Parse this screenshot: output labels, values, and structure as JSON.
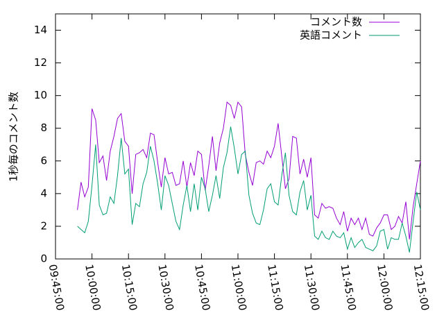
{
  "chart_data": {
    "type": "line",
    "y_label": "1秒毎のコメント数",
    "x": [
      "09:54:00",
      "09:55:30",
      "09:57:00",
      "09:58:30",
      "10:00:00",
      "10:01:30",
      "10:03:00",
      "10:04:30",
      "10:06:00",
      "10:07:30",
      "10:09:00",
      "10:10:30",
      "10:12:00",
      "10:13:30",
      "10:15:00",
      "10:16:30",
      "10:18:00",
      "10:19:30",
      "10:21:00",
      "10:22:30",
      "10:24:00",
      "10:25:30",
      "10:27:00",
      "10:28:30",
      "10:30:00",
      "10:31:30",
      "10:33:00",
      "10:34:30",
      "10:36:00",
      "10:37:30",
      "10:39:00",
      "10:40:30",
      "10:42:00",
      "10:43:30",
      "10:45:00",
      "10:46:30",
      "10:48:00",
      "10:49:30",
      "10:51:00",
      "10:52:30",
      "10:54:00",
      "10:55:30",
      "10:57:00",
      "10:58:30",
      "11:00:00",
      "11:01:30",
      "11:03:00",
      "11:04:30",
      "11:06:00",
      "11:07:30",
      "11:09:00",
      "11:10:30",
      "11:12:00",
      "11:13:30",
      "11:15:00",
      "11:16:30",
      "11:18:00",
      "11:19:30",
      "11:21:00",
      "11:22:30",
      "11:24:00",
      "11:25:30",
      "11:27:00",
      "11:28:30",
      "11:30:00",
      "11:31:30",
      "11:33:00",
      "11:34:30",
      "11:36:00",
      "11:37:30",
      "11:39:00",
      "11:40:30",
      "11:42:00",
      "11:43:30",
      "11:45:00",
      "11:46:30",
      "11:48:00",
      "11:49:30",
      "11:51:00",
      "11:52:30",
      "11:54:00",
      "11:55:30",
      "11:57:00",
      "11:58:30",
      "12:00:00",
      "12:01:30",
      "12:03:00",
      "12:04:30",
      "12:06:00",
      "12:07:30",
      "12:09:00",
      "12:10:30",
      "12:12:00",
      "12:13:30",
      "12:15:00"
    ],
    "series": [
      {
        "name": "コメント数",
        "color": "#9400d3",
        "values": [
          3.0,
          4.7,
          3.8,
          4.4,
          9.2,
          8.5,
          5.9,
          6.3,
          4.8,
          6.6,
          7.5,
          8.6,
          8.9,
          7.2,
          6.9,
          4.0,
          6.4,
          6.5,
          6.7,
          6.2,
          7.7,
          7.6,
          5.9,
          4.4,
          6.2,
          5.2,
          5.3,
          4.5,
          4.6,
          6.0,
          4.4,
          5.9,
          5.1,
          6.6,
          6.4,
          4.2,
          5.7,
          7.5,
          5.4,
          7.1,
          8.0,
          9.6,
          9.4,
          8.6,
          9.6,
          9.3,
          6.4,
          5.3,
          4.5,
          5.9,
          6.0,
          5.8,
          6.6,
          6.2,
          6.9,
          8.3,
          6.3,
          4.3,
          4.9,
          7.5,
          7.4,
          5.2,
          6.1,
          5.0,
          6.2,
          2.7,
          2.5,
          3.4,
          3.1,
          3.2,
          3.1,
          2.5,
          2.1,
          2.9,
          1.7,
          2.5,
          2.1,
          2.5,
          1.8,
          2.5,
          1.5,
          1.4,
          1.9,
          2.2,
          2.7,
          2.7,
          1.8,
          2.0,
          2.6,
          2.2,
          3.5,
          1.2,
          3.2,
          4.6,
          6.0
        ]
      },
      {
        "name": "英語コメント",
        "color": "#009e73",
        "values": [
          2.0,
          1.8,
          1.6,
          2.3,
          4.5,
          7.0,
          3.3,
          2.7,
          2.8,
          3.8,
          3.4,
          5.1,
          7.4,
          5.2,
          5.5,
          2.1,
          3.4,
          3.2,
          4.6,
          5.3,
          6.9,
          6.0,
          4.6,
          3.0,
          5.1,
          4.5,
          3.4,
          2.3,
          1.8,
          3.3,
          4.5,
          2.9,
          4.6,
          3.0,
          5.0,
          4.3,
          2.9,
          3.9,
          5.1,
          3.7,
          5.6,
          6.5,
          8.1,
          6.8,
          5.2,
          6.4,
          6.6,
          3.9,
          2.8,
          2.2,
          2.1,
          3.0,
          4.3,
          4.6,
          3.5,
          3.3,
          5.1,
          6.5,
          3.9,
          2.9,
          2.7,
          4.1,
          4.8,
          3.0,
          3.9,
          1.4,
          1.2,
          1.7,
          1.3,
          1.2,
          1.7,
          1.4,
          1.3,
          1.6,
          0.6,
          1.3,
          0.7,
          1.0,
          1.2,
          0.7,
          0.6,
          0.5,
          0.8,
          1.7,
          1.8,
          0.6,
          1.3,
          1.2,
          1.2,
          2.2,
          1.4,
          0.4,
          2.3,
          4.1,
          3.0
        ]
      }
    ],
    "xlim": [
      "09:45:00",
      "12:15:00"
    ],
    "xticks": [
      "09:45:00",
      "10:00:00",
      "10:15:00",
      "10:30:00",
      "10:45:00",
      "11:00:00",
      "11:15:00",
      "11:30:00",
      "11:45:00",
      "12:00:00",
      "12:15:00"
    ],
    "ylim": [
      0,
      15
    ],
    "yticks": [
      0,
      2,
      4,
      6,
      8,
      10,
      12,
      14
    ],
    "legend": "top-right"
  }
}
